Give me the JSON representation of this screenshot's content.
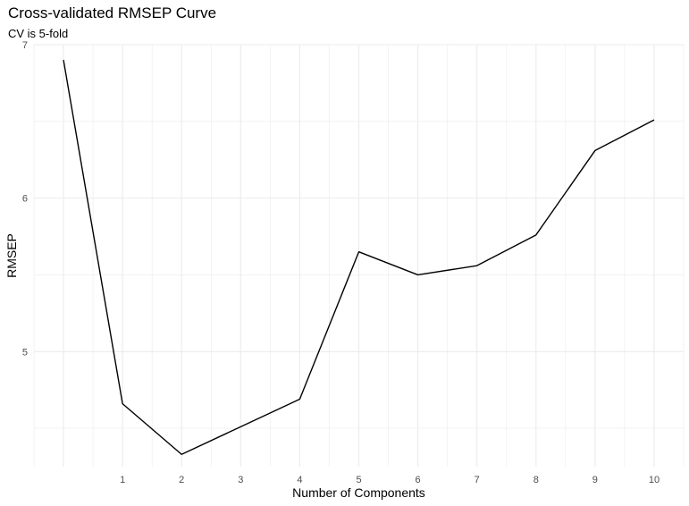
{
  "chart_data": {
    "type": "line",
    "title": "Cross-validated RMSEP Curve",
    "subtitle": "CV is 5-fold",
    "xlabel": "Number of Components",
    "ylabel": "RMSEP",
    "x": [
      0,
      1,
      2,
      3,
      4,
      5,
      6,
      7,
      8,
      9,
      10
    ],
    "series": [
      {
        "values": [
          6.9,
          4.66,
          4.33,
          4.51,
          4.69,
          5.65,
          5.5,
          5.56,
          5.76,
          6.31,
          6.51
        ]
      }
    ],
    "x_ticks": [
      1,
      2,
      3,
      4,
      5,
      6,
      7,
      8,
      9,
      10
    ],
    "y_ticks": [
      5,
      6,
      7
    ],
    "xlim": [
      -0.5,
      10.5
    ],
    "ylim": [
      4.25,
      7.0
    ],
    "grid": true,
    "line_color": "#000000",
    "grid_color": "#ebebeb"
  }
}
